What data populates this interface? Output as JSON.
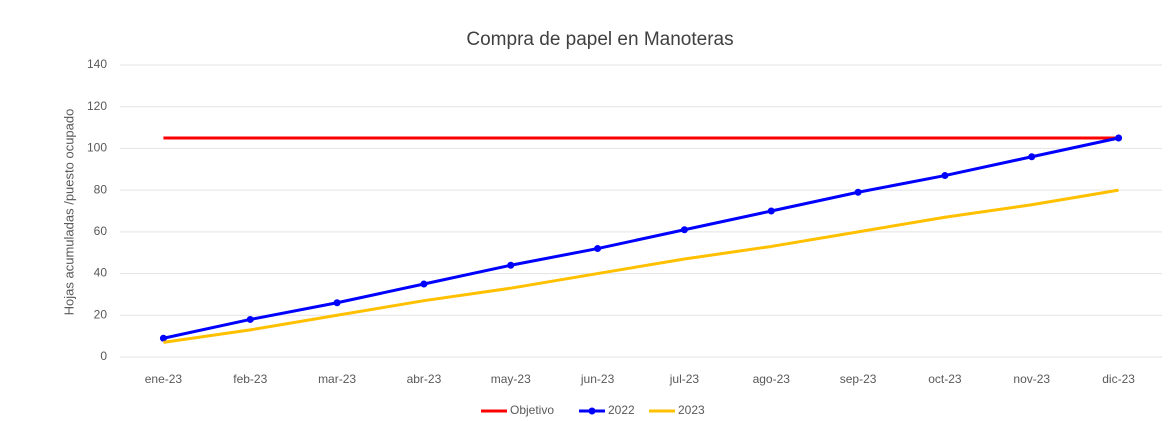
{
  "chart_data": {
    "type": "line",
    "title": "Compra de papel en Manoteras",
    "y_label": "Hojas acumuladas /puesto ocupado",
    "categories": [
      "ene-23",
      "feb-23",
      "mar-23",
      "abr-23",
      "may-23",
      "jun-23",
      "jul-23",
      "ago-23",
      "sep-23",
      "oct-23",
      "nov-23",
      "dic-23"
    ],
    "series": [
      {
        "name": "Objetivo",
        "color": "#ff0000",
        "markers": false,
        "values": [
          105,
          105,
          105,
          105,
          105,
          105,
          105,
          105,
          105,
          105,
          105,
          105
        ]
      },
      {
        "name": "2022",
        "color": "#0000ff",
        "markers": true,
        "values": [
          9,
          18,
          26,
          35,
          44,
          52,
          61,
          70,
          79,
          87,
          96,
          105
        ]
      },
      {
        "name": "2023",
        "color": "#ffc000",
        "markers": false,
        "values": [
          7,
          13,
          20,
          27,
          33,
          40,
          47,
          53,
          60,
          67,
          73,
          80
        ]
      }
    ],
    "ylim": [
      0,
      140
    ],
    "yticks": [
      0,
      20,
      40,
      60,
      80,
      100,
      120,
      140
    ],
    "grid": true,
    "legend": "bottom"
  }
}
